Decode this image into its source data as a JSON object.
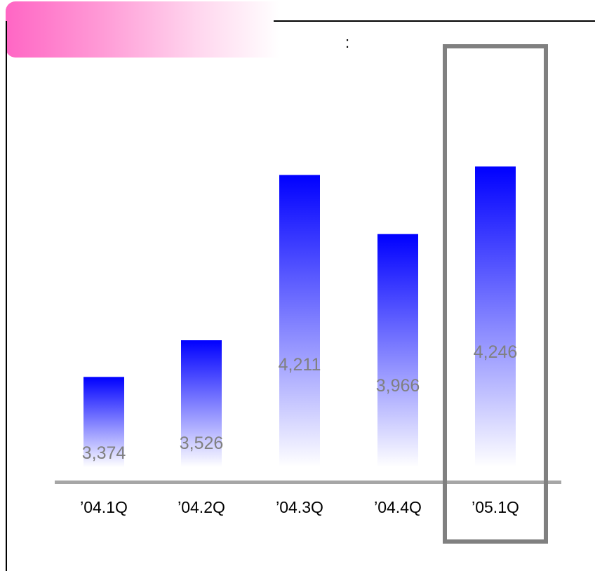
{
  "header": {
    "colon": ":"
  },
  "chart_data": {
    "type": "bar",
    "categories": [
      "’04.1Q",
      "’04.2Q",
      "’04.3Q",
      "’04.4Q",
      "’05.1Q"
    ],
    "values": [
      3374,
      3526,
      4211,
      3966,
      4246
    ],
    "value_labels": [
      "3,374",
      "3,526",
      "4,211",
      "3,966",
      "4,246"
    ],
    "title": "",
    "xlabel": "",
    "ylabel": "",
    "ylim": [
      3000,
      4500
    ],
    "grid": false,
    "legend": "none",
    "highlight_category": "’05.1Q",
    "colors": {
      "bar_top": "#0000ff",
      "bar_bottom": "#ffffff",
      "baseline": "#a6a6a6",
      "value_label": "#808080",
      "highlight_box": "#808080",
      "header_gradient_start": "#ff66c4"
    }
  }
}
